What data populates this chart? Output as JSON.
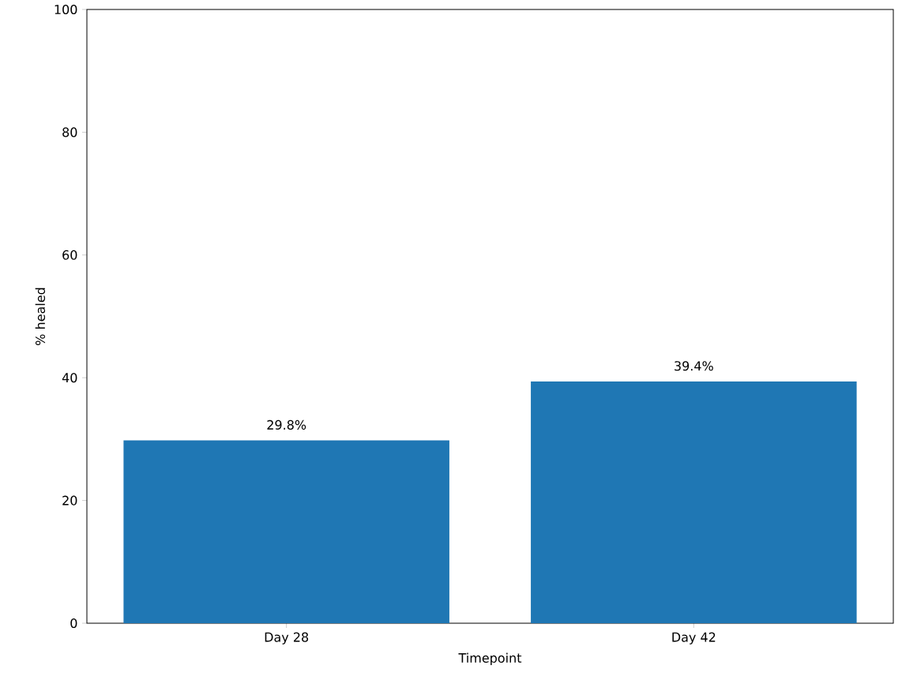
{
  "chart_data": {
    "type": "bar",
    "xlabel": "Timepoint",
    "ylabel": "% healed",
    "categories": [
      "Day 28",
      "Day 42"
    ],
    "values": [
      29.8,
      39.4
    ],
    "value_labels": [
      "29.8%",
      "39.4%"
    ],
    "color": "#1f77b4",
    "ylim": [
      0,
      100
    ],
    "yticks": [
      0,
      20,
      40,
      60,
      80,
      100
    ],
    "grid": false
  }
}
